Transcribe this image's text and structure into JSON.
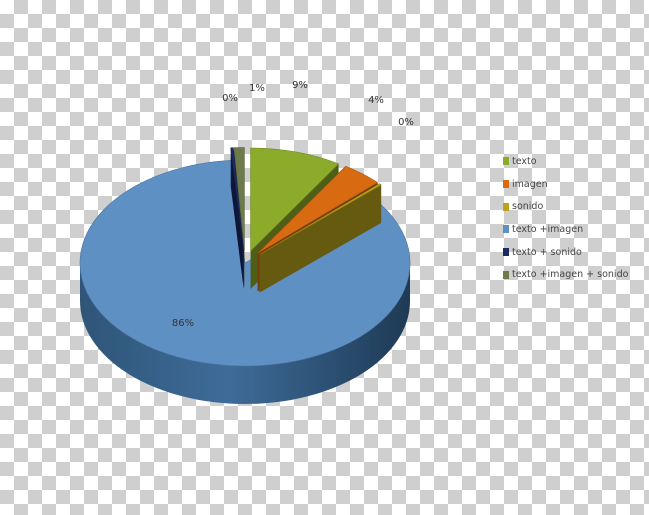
{
  "chart_data": {
    "type": "pie",
    "title": "",
    "three_d": true,
    "exploded": true,
    "slices": [
      {
        "name": "texto",
        "value": 9,
        "label": "9%",
        "color": "#8dab2a"
      },
      {
        "name": "imagen",
        "value": 4,
        "label": "4%",
        "color": "#d86a12"
      },
      {
        "name": "sonido",
        "value": 0,
        "label": "0%",
        "color": "#b9a21d"
      },
      {
        "name": "texto +imagen",
        "value": 86,
        "label": "86%",
        "color": "#5f90c4"
      },
      {
        "name": "texto + sonido",
        "value": 0,
        "label": "0%",
        "color": "#1c2a66"
      },
      {
        "name": "texto +imagen + sonido",
        "value": 1,
        "label": "1%",
        "color": "#6d7a4a"
      }
    ],
    "legend_position": "right"
  }
}
